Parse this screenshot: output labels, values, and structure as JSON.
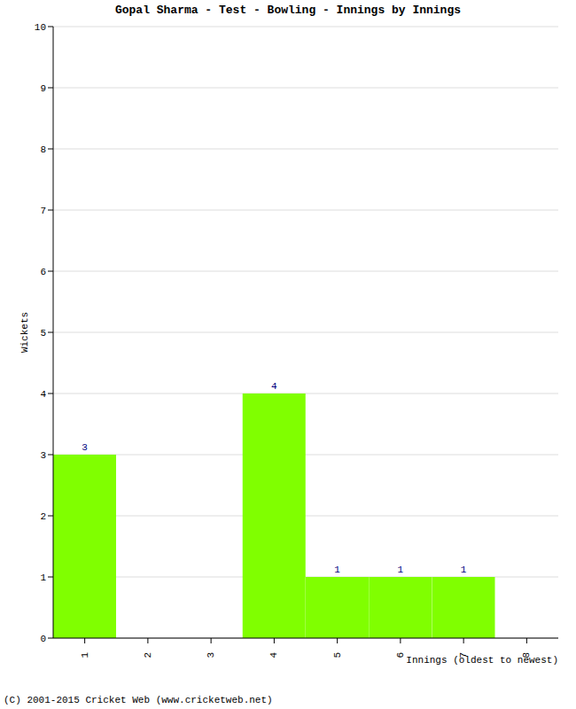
{
  "chart_data": {
    "type": "bar",
    "title": "Gopal Sharma - Test - Bowling - Innings by Innings",
    "x_label": "Innings (oldest to newest)",
    "y_label": "Wickets",
    "annotations": [
      "(C) 2001-2015 Cricket Web (www.cricketweb.net)"
    ],
    "categories": [
      "1",
      "2",
      "3",
      "4",
      "5",
      "6",
      "7",
      "8"
    ],
    "values": [
      3,
      0,
      0,
      4,
      1,
      1,
      1,
      0
    ],
    "color": "#80ff00",
    "ylim": [
      0,
      10
    ],
    "yticks": [
      0,
      1,
      2,
      3,
      4,
      5,
      6,
      7,
      8,
      9,
      10
    ],
    "grid": true,
    "data_labels": true
  }
}
